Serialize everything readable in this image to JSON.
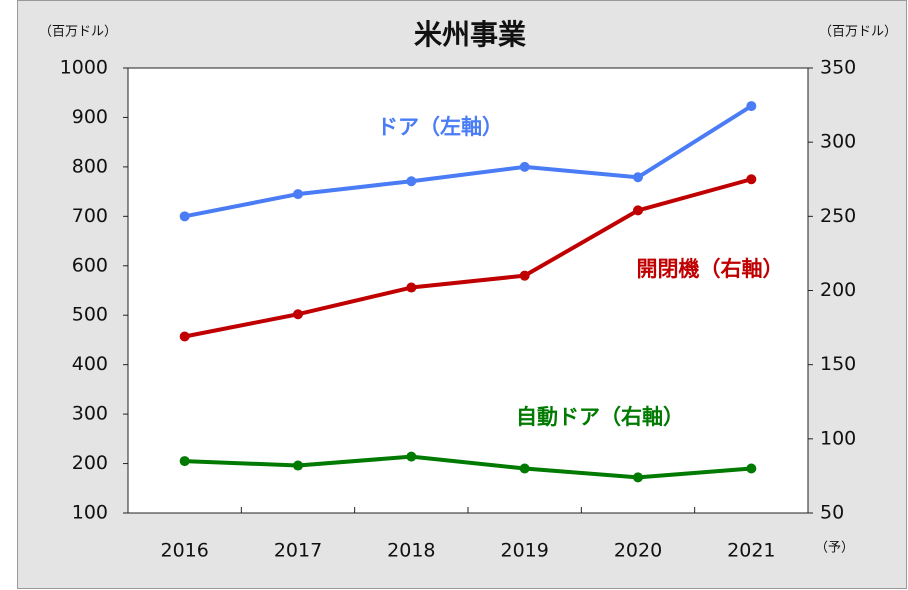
{
  "chart_data": {
    "type": "line",
    "title": "米州事業",
    "y_unit": "（百万ドル）",
    "y2_unit": "（百万ドル）",
    "forecast_note": "（予）",
    "categories": [
      "2016",
      "2017",
      "2018",
      "2019",
      "2020",
      "2021"
    ],
    "ylim": [
      100,
      1000
    ],
    "yticks": [
      100,
      200,
      300,
      400,
      500,
      600,
      700,
      800,
      900,
      1000
    ],
    "y2lim": [
      50,
      350
    ],
    "y2ticks": [
      50,
      100,
      150,
      200,
      250,
      300,
      350
    ],
    "series": [
      {
        "name": "ドア（左軸）",
        "color": "#4a7cf5",
        "values": [
          700,
          745,
          771,
          800,
          779,
          923
        ]
      },
      {
        "name": "開閉機（右軸）",
        "color": "#c00000",
        "axis": "y2",
        "values": [
          169,
          184,
          202,
          210,
          254,
          275
        ]
      },
      {
        "name": "自動ドア（右軸）",
        "color": "#007a00",
        "axis": "y2",
        "values": [
          85,
          82,
          88,
          80,
          74,
          80
        ]
      }
    ]
  }
}
